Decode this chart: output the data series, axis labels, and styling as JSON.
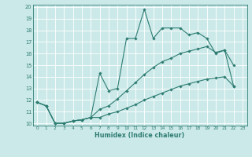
{
  "xlabel": "Humidex (Indice chaleur)",
  "bg_color": "#cce9e9",
  "grid_color": "#ffffff",
  "line_color": "#2e7d72",
  "xlim": [
    -0.5,
    23.5
  ],
  "ylim": [
    9.8,
    20.2
  ],
  "yticks": [
    10,
    11,
    12,
    13,
    14,
    15,
    16,
    17,
    18,
    19,
    20
  ],
  "xticks": [
    0,
    1,
    2,
    3,
    4,
    5,
    6,
    7,
    8,
    9,
    10,
    11,
    12,
    13,
    14,
    15,
    16,
    17,
    18,
    19,
    20,
    21,
    22,
    23
  ],
  "series1_x": [
    0,
    1,
    2,
    3,
    4,
    5,
    6,
    7,
    8,
    9,
    10,
    11,
    12,
    13,
    14,
    15,
    16,
    17,
    18,
    19,
    20,
    21,
    22
  ],
  "series1_y": [
    11.8,
    11.5,
    10.0,
    10.0,
    10.2,
    10.3,
    10.5,
    14.3,
    12.8,
    13.0,
    17.3,
    17.3,
    19.8,
    17.3,
    18.2,
    18.2,
    18.2,
    17.6,
    17.8,
    17.3,
    16.0,
    16.3,
    15.0
  ],
  "series2_x": [
    0,
    1,
    2,
    3,
    4,
    5,
    6,
    7,
    8,
    9,
    10,
    11,
    12,
    13,
    14,
    15,
    16,
    17,
    18,
    19,
    20,
    21,
    22
  ],
  "series2_y": [
    11.8,
    11.5,
    10.0,
    10.0,
    10.2,
    10.3,
    10.5,
    11.2,
    11.5,
    12.1,
    12.8,
    13.5,
    14.2,
    14.8,
    15.3,
    15.6,
    16.0,
    16.2,
    16.4,
    16.6,
    16.1,
    16.3,
    13.2
  ],
  "series3_x": [
    0,
    1,
    2,
    3,
    4,
    5,
    6,
    7,
    8,
    9,
    10,
    11,
    12,
    13,
    14,
    15,
    16,
    17,
    18,
    19,
    20,
    21,
    22
  ],
  "series3_y": [
    11.8,
    11.5,
    10.0,
    10.0,
    10.2,
    10.3,
    10.5,
    10.5,
    10.8,
    11.0,
    11.3,
    11.6,
    12.0,
    12.3,
    12.6,
    12.9,
    13.2,
    13.4,
    13.6,
    13.8,
    13.9,
    14.0,
    13.2
  ]
}
